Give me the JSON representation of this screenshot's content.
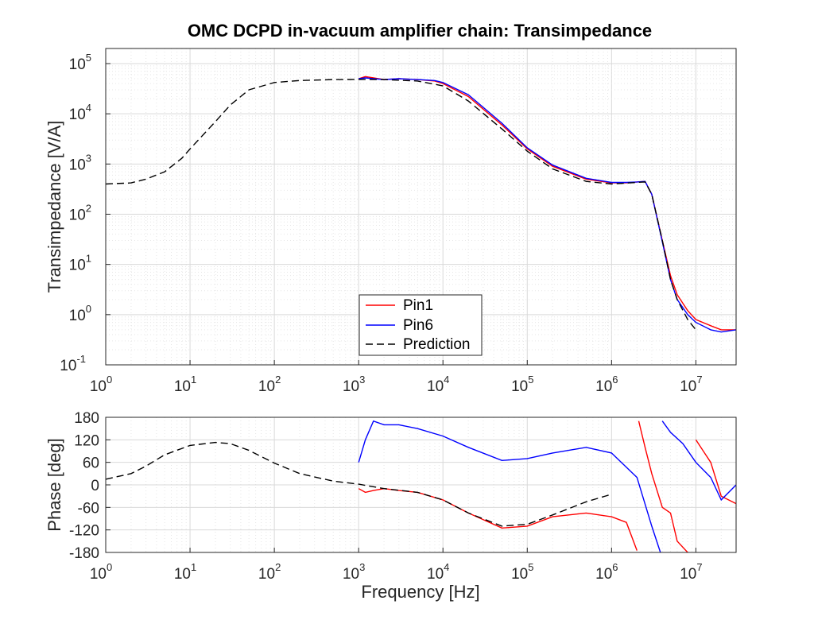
{
  "chart_data": [
    {
      "type": "line",
      "title": "OMC DCPD in-vacuum amplifier chain: Transimpedance",
      "xlabel": "",
      "ylabel": "Transimpedance [V/A]",
      "xscale": "log",
      "yscale": "log",
      "xlim": [
        1,
        30000000
      ],
      "ylim": [
        0.1,
        200000
      ],
      "grid": true,
      "minor_grid": true,
      "legend_position": "bottom-center",
      "x_ticks": [
        {
          "base": "10",
          "exp": "0"
        },
        {
          "base": "10",
          "exp": "1"
        },
        {
          "base": "10",
          "exp": "2"
        },
        {
          "base": "10",
          "exp": "3"
        },
        {
          "base": "10",
          "exp": "4"
        },
        {
          "base": "10",
          "exp": "5"
        },
        {
          "base": "10",
          "exp": "6"
        },
        {
          "base": "10",
          "exp": "7"
        }
      ],
      "y_ticks": [
        {
          "base": "10",
          "exp": "-1"
        },
        {
          "base": "10",
          "exp": "0"
        },
        {
          "base": "10",
          "exp": "1"
        },
        {
          "base": "10",
          "exp": "2"
        },
        {
          "base": "10",
          "exp": "3"
        },
        {
          "base": "10",
          "exp": "4"
        },
        {
          "base": "10",
          "exp": "5"
        }
      ],
      "series": [
        {
          "name": "Pin1",
          "color": "#ff0000",
          "style": "solid",
          "x": [
            1000,
            1200,
            1500,
            2000,
            3000,
            5000,
            8000,
            10000,
            20000,
            50000,
            100000,
            200000,
            500000,
            1000000,
            1500000,
            2000000,
            2500000,
            3000000,
            4000000,
            5000000,
            6000000,
            8000000,
            10000000,
            15000000,
            20000000,
            30000000
          ],
          "y": [
            50000,
            55000,
            52000,
            48000,
            50000,
            48000,
            45000,
            40000,
            22000,
            6000,
            2000,
            900,
            500,
            420,
            420,
            440,
            450,
            250,
            30,
            6,
            2.5,
            1.2,
            0.8,
            0.6,
            0.5,
            0.5
          ]
        },
        {
          "name": "Pin6",
          "color": "#0000ff",
          "style": "solid",
          "x": [
            1000,
            1200,
            1500,
            2000,
            3000,
            5000,
            8000,
            10000,
            20000,
            50000,
            100000,
            200000,
            500000,
            1000000,
            1500000,
            2000000,
            2500000,
            3000000,
            4000000,
            5000000,
            6000000,
            8000000,
            10000000,
            15000000,
            20000000,
            30000000
          ],
          "y": [
            50000,
            52000,
            50000,
            48000,
            50000,
            48000,
            46000,
            42000,
            24000,
            6500,
            2100,
            950,
            520,
            430,
            430,
            440,
            450,
            250,
            28,
            5,
            2,
            1,
            0.7,
            0.5,
            0.45,
            0.5
          ]
        },
        {
          "name": "Prediction",
          "color": "#000000",
          "style": "dashed",
          "x": [
            1,
            2,
            3,
            5,
            8,
            10,
            20,
            30,
            50,
            100,
            200,
            500,
            1000,
            2000,
            5000,
            10000,
            20000,
            50000,
            100000,
            200000,
            500000,
            1000000,
            2000000,
            2500000,
            3000000,
            4000000,
            5000000,
            6000000,
            8000000,
            10000000
          ],
          "y": [
            400,
            420,
            500,
            700,
            1300,
            2000,
            7000,
            15000,
            30000,
            42000,
            46000,
            48000,
            48500,
            48000,
            45000,
            36000,
            18000,
            5000,
            1800,
            800,
            450,
            400,
            430,
            440,
            250,
            30,
            5,
            2,
            0.8,
            0.5
          ]
        }
      ]
    },
    {
      "type": "line",
      "title": "",
      "xlabel": "Frequency [Hz]",
      "ylabel": "Phase [deg]",
      "xscale": "log",
      "yscale": "linear",
      "xlim": [
        1,
        30000000
      ],
      "ylim": [
        -180,
        180
      ],
      "grid": true,
      "x_ticks": [
        {
          "base": "10",
          "exp": "0"
        },
        {
          "base": "10",
          "exp": "1"
        },
        {
          "base": "10",
          "exp": "2"
        },
        {
          "base": "10",
          "exp": "3"
        },
        {
          "base": "10",
          "exp": "4"
        },
        {
          "base": "10",
          "exp": "5"
        },
        {
          "base": "10",
          "exp": "6"
        },
        {
          "base": "10",
          "exp": "7"
        }
      ],
      "y_ticks": [
        "180",
        "120",
        "60",
        "0",
        "-60",
        "-120",
        "-180"
      ],
      "series": [
        {
          "name": "Pin1",
          "color": "#ff0000",
          "x": [
            1000,
            1200,
            1500,
            2000,
            3000,
            5000,
            10000,
            20000,
            50000,
            100000,
            200000,
            500000,
            1000000,
            1500000,
            2000000,
            2100000,
            2500000,
            3000000,
            4000000,
            5000000,
            6000000,
            8000000,
            10000000,
            15000000,
            20000000,
            30000000
          ],
          "y": [
            -10,
            -20,
            -15,
            -10,
            -15,
            -20,
            -40,
            -75,
            -115,
            -110,
            -85,
            -75,
            -85,
            -100,
            -175,
            170,
            100,
            30,
            -60,
            -75,
            -150,
            -180,
            120,
            60,
            -30,
            -50
          ]
        },
        {
          "name": "Pin6",
          "color": "#0000ff",
          "x": [
            1000,
            1200,
            1500,
            2000,
            3000,
            5000,
            10000,
            20000,
            50000,
            100000,
            200000,
            500000,
            1000000,
            2000000,
            3000000,
            3800000,
            4000000,
            5000000,
            7000000,
            10000000,
            15000000,
            20000000,
            30000000
          ],
          "y": [
            60,
            120,
            170,
            160,
            160,
            150,
            130,
            100,
            65,
            70,
            85,
            100,
            85,
            20,
            -110,
            -180,
            170,
            140,
            110,
            60,
            20,
            -40,
            0
          ]
        },
        {
          "name": "Prediction",
          "color": "#000000",
          "style": "dashed",
          "x": [
            1,
            2,
            3,
            5,
            10,
            20,
            30,
            50,
            100,
            200,
            500,
            1000,
            2000,
            5000,
            10000,
            20000,
            50000,
            100000,
            200000,
            500000,
            1000000
          ],
          "y": [
            15,
            30,
            50,
            80,
            105,
            113,
            110,
            92,
            58,
            30,
            10,
            2,
            -10,
            -20,
            -40,
            -75,
            -110,
            -105,
            -80,
            -45,
            -25
          ]
        }
      ]
    }
  ],
  "legend": {
    "entries": [
      {
        "label": "Pin1",
        "color": "#ff0000",
        "style": "solid"
      },
      {
        "label": "Pin6",
        "color": "#0000ff",
        "style": "solid"
      },
      {
        "label": "Prediction",
        "color": "#000000",
        "style": "dashed"
      }
    ]
  }
}
